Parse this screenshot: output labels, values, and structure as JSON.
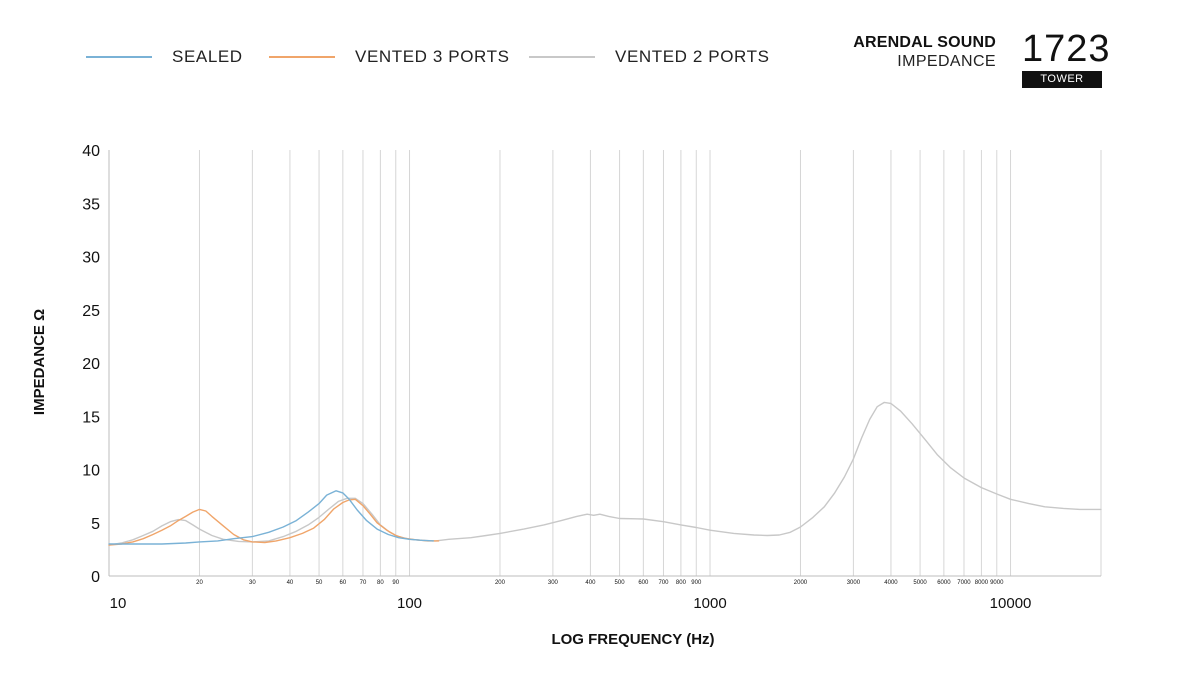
{
  "brand": {
    "name": "ARENDAL SOUND",
    "subtitle": "IMPEDANCE",
    "model": "1723",
    "tag": "TOWER"
  },
  "colors": {
    "sealed": "#7ab2d6",
    "vented3": "#f0a56a",
    "vented2": "#c8c8c8",
    "grid": "#d6d6d6",
    "axis": "#bdbdbd",
    "text": "#111111"
  },
  "chart_data": {
    "type": "line",
    "x_scale": "log",
    "xlabel": "LOG FREQUENCY (Hz)",
    "ylabel": "IMPEDANCE Ω",
    "xlim": [
      10,
      20000
    ],
    "ylim": [
      0,
      40
    ],
    "yticks": [
      0,
      5,
      10,
      15,
      20,
      25,
      30,
      35,
      40
    ],
    "xticks_major": [
      {
        "v": 10,
        "label": "10"
      },
      {
        "v": 100,
        "label": "100"
      },
      {
        "v": 1000,
        "label": "1000"
      },
      {
        "v": 10000,
        "label": "10000"
      }
    ],
    "xticks_minor": [
      {
        "v": 20,
        "label": "20"
      },
      {
        "v": 30,
        "label": "30"
      },
      {
        "v": 40,
        "label": "40"
      },
      {
        "v": 50,
        "label": "50"
      },
      {
        "v": 60,
        "label": "60"
      },
      {
        "v": 70,
        "label": "70"
      },
      {
        "v": 80,
        "label": "80"
      },
      {
        "v": 90,
        "label": "90"
      },
      {
        "v": 200,
        "label": "200"
      },
      {
        "v": 300,
        "label": "300"
      },
      {
        "v": 400,
        "label": "400"
      },
      {
        "v": 500,
        "label": "500"
      },
      {
        "v": 600,
        "label": "600"
      },
      {
        "v": 700,
        "label": "700"
      },
      {
        "v": 800,
        "label": "800"
      },
      {
        "v": 900,
        "label": "900"
      },
      {
        "v": 2000,
        "label": "2000"
      },
      {
        "v": 3000,
        "label": "3000"
      },
      {
        "v": 4000,
        "label": "4000"
      },
      {
        "v": 5000,
        "label": "5000"
      },
      {
        "v": 6000,
        "label": "6000"
      },
      {
        "v": 7000,
        "label": "7000"
      },
      {
        "v": 8000,
        "label": "8000"
      },
      {
        "v": 9000,
        "label": "9000"
      }
    ],
    "grid": true,
    "legend": "top-left",
    "series": [
      {
        "name": "SEALED",
        "color_key": "sealed",
        "points": [
          [
            10,
            3.0
          ],
          [
            12,
            3.0
          ],
          [
            15,
            3.0
          ],
          [
            18,
            3.1
          ],
          [
            20,
            3.2
          ],
          [
            23,
            3.3
          ],
          [
            26,
            3.5
          ],
          [
            30,
            3.7
          ],
          [
            34,
            4.1
          ],
          [
            38,
            4.6
          ],
          [
            42,
            5.2
          ],
          [
            46,
            6.0
          ],
          [
            50,
            6.8
          ],
          [
            53,
            7.6
          ],
          [
            57,
            8.0
          ],
          [
            60,
            7.8
          ],
          [
            63,
            7.2
          ],
          [
            67,
            6.2
          ],
          [
            72,
            5.2
          ],
          [
            78,
            4.4
          ],
          [
            85,
            3.9
          ],
          [
            92,
            3.6
          ],
          [
            100,
            3.45
          ],
          [
            110,
            3.35
          ],
          [
            120,
            3.3
          ]
        ]
      },
      {
        "name": "VENTED 3 PORTS",
        "color_key": "vented3",
        "points": [
          [
            10,
            2.9
          ],
          [
            11,
            3.0
          ],
          [
            12,
            3.2
          ],
          [
            13,
            3.5
          ],
          [
            14,
            3.9
          ],
          [
            15,
            4.3
          ],
          [
            16,
            4.7
          ],
          [
            17,
            5.2
          ],
          [
            18,
            5.6
          ],
          [
            19,
            6.0
          ],
          [
            20,
            6.25
          ],
          [
            21,
            6.1
          ],
          [
            22,
            5.6
          ],
          [
            24,
            4.7
          ],
          [
            26,
            3.9
          ],
          [
            28,
            3.4
          ],
          [
            30,
            3.2
          ],
          [
            33,
            3.15
          ],
          [
            36,
            3.3
          ],
          [
            40,
            3.6
          ],
          [
            44,
            4.0
          ],
          [
            48,
            4.5
          ],
          [
            52,
            5.3
          ],
          [
            56,
            6.3
          ],
          [
            60,
            6.9
          ],
          [
            63,
            7.15
          ],
          [
            66,
            7.2
          ],
          [
            70,
            6.6
          ],
          [
            74,
            5.8
          ],
          [
            78,
            5.0
          ],
          [
            84,
            4.3
          ],
          [
            90,
            3.8
          ],
          [
            96,
            3.55
          ],
          [
            105,
            3.4
          ],
          [
            115,
            3.3
          ],
          [
            125,
            3.3
          ]
        ]
      },
      {
        "name": "VENTED 2 PORTS",
        "color_key": "vented2",
        "points": [
          [
            10,
            2.9
          ],
          [
            11,
            3.1
          ],
          [
            12,
            3.4
          ],
          [
            13,
            3.8
          ],
          [
            14,
            4.2
          ],
          [
            15,
            4.7
          ],
          [
            16,
            5.1
          ],
          [
            17,
            5.3
          ],
          [
            18,
            5.2
          ],
          [
            19,
            4.8
          ],
          [
            20,
            4.4
          ],
          [
            22,
            3.8
          ],
          [
            24,
            3.45
          ],
          [
            27,
            3.25
          ],
          [
            30,
            3.2
          ],
          [
            34,
            3.3
          ],
          [
            38,
            3.7
          ],
          [
            42,
            4.2
          ],
          [
            46,
            4.8
          ],
          [
            50,
            5.5
          ],
          [
            54,
            6.3
          ],
          [
            58,
            7.0
          ],
          [
            62,
            7.3
          ],
          [
            66,
            7.3
          ],
          [
            70,
            6.8
          ],
          [
            75,
            5.8
          ],
          [
            80,
            4.8
          ],
          [
            86,
            4.1
          ],
          [
            92,
            3.7
          ],
          [
            100,
            3.45
          ],
          [
            110,
            3.35
          ],
          [
            122,
            3.3
          ],
          [
            135,
            3.45
          ],
          [
            160,
            3.6
          ],
          [
            180,
            3.8
          ],
          [
            200,
            4.0
          ],
          [
            240,
            4.4
          ],
          [
            280,
            4.8
          ],
          [
            320,
            5.2
          ],
          [
            360,
            5.6
          ],
          [
            390,
            5.8
          ],
          [
            410,
            5.7
          ],
          [
            430,
            5.8
          ],
          [
            460,
            5.6
          ],
          [
            500,
            5.4
          ],
          [
            600,
            5.35
          ],
          [
            700,
            5.1
          ],
          [
            800,
            4.8
          ],
          [
            900,
            4.55
          ],
          [
            1000,
            4.3
          ],
          [
            1200,
            4.0
          ],
          [
            1400,
            3.85
          ],
          [
            1550,
            3.8
          ],
          [
            1700,
            3.85
          ],
          [
            1850,
            4.1
          ],
          [
            2000,
            4.6
          ],
          [
            2200,
            5.5
          ],
          [
            2400,
            6.5
          ],
          [
            2600,
            7.8
          ],
          [
            2800,
            9.3
          ],
          [
            3000,
            11.0
          ],
          [
            3200,
            13.0
          ],
          [
            3400,
            14.7
          ],
          [
            3600,
            15.9
          ],
          [
            3800,
            16.3
          ],
          [
            4000,
            16.2
          ],
          [
            4300,
            15.5
          ],
          [
            4700,
            14.3
          ],
          [
            5200,
            12.8
          ],
          [
            5700,
            11.4
          ],
          [
            6300,
            10.2
          ],
          [
            7000,
            9.2
          ],
          [
            8000,
            8.3
          ],
          [
            9000,
            7.7
          ],
          [
            10000,
            7.2
          ],
          [
            11500,
            6.8
          ],
          [
            13000,
            6.5
          ],
          [
            15000,
            6.35
          ],
          [
            17000,
            6.25
          ],
          [
            20000,
            6.25
          ]
        ]
      }
    ]
  }
}
